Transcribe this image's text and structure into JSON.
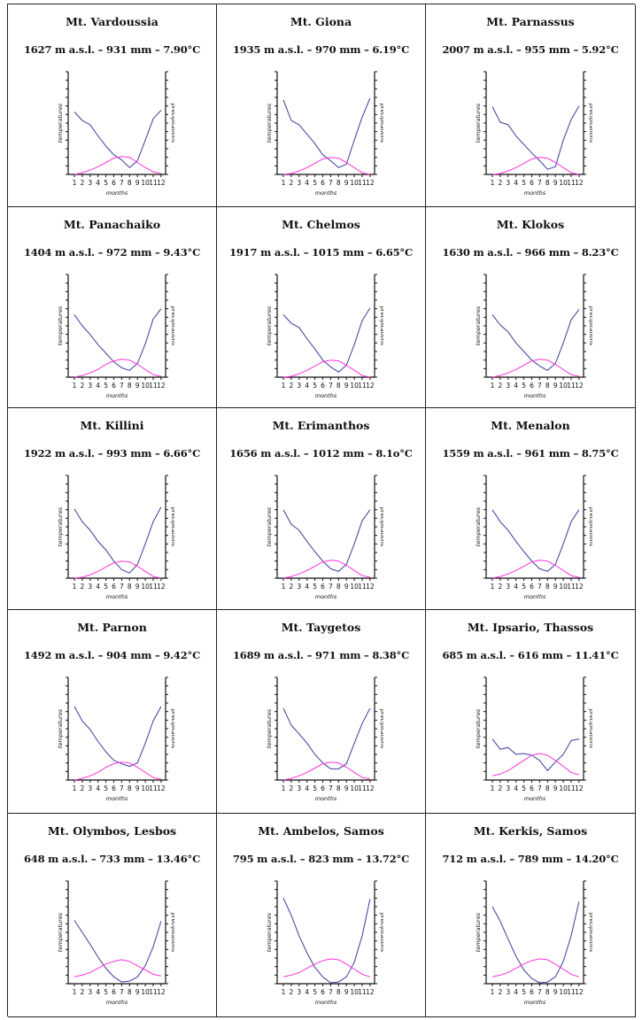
{
  "colors": {
    "temperature_line": "#3b3b9e",
    "precipitation_line": "#ff33dd",
    "axis": "#111111",
    "border": "#222222"
  },
  "chart_data": [
    {
      "type": "line",
      "title": "Mt. Vardoussia",
      "subtitle": "1627 m a.s.l. – 931 mm – 7.90°C",
      "xlabel": "months",
      "ylabel_left": "temperatures",
      "ylabel_right": "precipitations",
      "categories": [
        "1",
        "2",
        "3",
        "4",
        "5",
        "6",
        "7",
        "8",
        "9",
        "10",
        "11",
        "12"
      ],
      "ylim": [
        0,
        12
      ],
      "series": [
        {
          "name": "precipitations",
          "values": [
            7.3,
            6.3,
            5.8,
            4.5,
            3.3,
            2.3,
            1.7,
            0.8,
            1.6,
            4.0,
            6.5,
            7.5
          ]
        },
        {
          "name": "temperatures",
          "values": [
            0.0,
            0.2,
            0.5,
            0.9,
            1.4,
            1.9,
            2.1,
            2.0,
            1.4,
            0.8,
            0.3,
            0.1
          ]
        }
      ]
    },
    {
      "type": "line",
      "title": "Mt. Giona",
      "subtitle": "1935 m a.s.l. – 970 mm – 6.19°C",
      "xlabel": "months",
      "ylabel_left": "temperatures",
      "ylabel_right": "precipitations",
      "categories": [
        "1",
        "2",
        "3",
        "4",
        "5",
        "6",
        "7",
        "8",
        "9",
        "10",
        "11",
        "12"
      ],
      "ylim": [
        0,
        12
      ],
      "series": [
        {
          "name": "precipitations",
          "values": [
            8.7,
            6.3,
            5.8,
            4.7,
            3.6,
            2.3,
            1.6,
            0.8,
            1.2,
            4.0,
            6.7,
            8.9
          ]
        },
        {
          "name": "temperatures",
          "values": [
            0.0,
            0.1,
            0.4,
            0.8,
            1.3,
            1.8,
            2.0,
            1.9,
            1.4,
            0.8,
            0.2,
            0.0
          ]
        }
      ]
    },
    {
      "type": "line",
      "title": "Mt. Parnassus",
      "subtitle": "2007 m a.s.l. – 955 mm – 5.92°C",
      "xlabel": "months",
      "ylabel_left": "temperatures",
      "ylabel_right": "precipitations",
      "categories": [
        "1",
        "2",
        "3",
        "4",
        "5",
        "6",
        "7",
        "8",
        "9",
        "10",
        "11",
        "12"
      ],
      "ylim": [
        0,
        12
      ],
      "series": [
        {
          "name": "precipitations",
          "values": [
            7.9,
            6.1,
            5.8,
            4.5,
            3.5,
            2.5,
            1.6,
            0.6,
            0.9,
            4.0,
            6.4,
            8.0
          ]
        },
        {
          "name": "temperatures",
          "values": [
            0.0,
            0.1,
            0.4,
            0.8,
            1.3,
            1.8,
            2.0,
            1.9,
            1.4,
            0.8,
            0.2,
            0.0
          ]
        }
      ]
    },
    {
      "type": "line",
      "title": "Mt. Panachaiko",
      "subtitle": "1404 m a.s.l. – 972 mm – 9.43°C",
      "xlabel": "months",
      "ylabel_left": "temperatures",
      "ylabel_right": "precipitations",
      "categories": [
        "1",
        "2",
        "3",
        "4",
        "5",
        "6",
        "7",
        "8",
        "9",
        "10",
        "11",
        "12"
      ],
      "ylim": [
        0,
        12
      ],
      "series": [
        {
          "name": "precipitations",
          "values": [
            7.3,
            6.0,
            5.0,
            3.8,
            2.8,
            1.8,
            1.1,
            0.8,
            1.6,
            3.9,
            6.8,
            8.0
          ]
        },
        {
          "name": "temperatures",
          "values": [
            0.0,
            0.2,
            0.5,
            0.9,
            1.5,
            1.9,
            2.1,
            2.0,
            1.5,
            0.9,
            0.3,
            0.1
          ]
        }
      ]
    },
    {
      "type": "line",
      "title": "Mt. Chelmos",
      "subtitle": "1917 m a.s.l. – 1015 mm – 6.65°C",
      "xlabel": "months",
      "ylabel_left": "temperatures",
      "ylabel_right": "precipitations",
      "categories": [
        "1",
        "2",
        "3",
        "4",
        "5",
        "6",
        "7",
        "8",
        "9",
        "10",
        "11",
        "12"
      ],
      "ylim": [
        0,
        12
      ],
      "series": [
        {
          "name": "precipitations",
          "values": [
            7.3,
            6.3,
            5.8,
            4.5,
            3.3,
            2.0,
            1.2,
            0.6,
            1.4,
            3.8,
            6.6,
            8.1
          ]
        },
        {
          "name": "temperatures",
          "values": [
            0.0,
            0.1,
            0.4,
            0.8,
            1.3,
            1.8,
            2.0,
            1.9,
            1.4,
            0.8,
            0.2,
            0.0
          ]
        }
      ]
    },
    {
      "type": "line",
      "title": "Mt. Klokos",
      "subtitle": "1630 m a.s.l. – 966 mm – 8.23°C",
      "xlabel": "months",
      "ylabel_left": "temperatures",
      "ylabel_right": "precipitations",
      "categories": [
        "1",
        "2",
        "3",
        "4",
        "5",
        "6",
        "7",
        "8",
        "9",
        "10",
        "11",
        "12"
      ],
      "ylim": [
        0,
        12
      ],
      "series": [
        {
          "name": "precipitations",
          "values": [
            7.3,
            6.1,
            5.3,
            4.0,
            3.0,
            2.0,
            1.3,
            0.8,
            1.6,
            4.0,
            6.7,
            7.9
          ]
        },
        {
          "name": "temperatures",
          "values": [
            0.0,
            0.2,
            0.5,
            0.9,
            1.4,
            1.9,
            2.1,
            2.0,
            1.5,
            0.9,
            0.3,
            0.1
          ]
        }
      ]
    },
    {
      "type": "line",
      "title": "Mt. Killini",
      "subtitle": "1922 m a.s.l. – 993 mm – 6.66°C",
      "xlabel": "months",
      "ylabel_left": "temperatures",
      "ylabel_right": "precipitations",
      "categories": [
        "1",
        "2",
        "3",
        "4",
        "5",
        "6",
        "7",
        "8",
        "9",
        "10",
        "11",
        "12"
      ],
      "ylim": [
        0,
        12
      ],
      "series": [
        {
          "name": "precipitations",
          "values": [
            8.1,
            6.6,
            5.6,
            4.3,
            3.3,
            2.0,
            1.0,
            0.6,
            1.6,
            4.0,
            6.6,
            8.3
          ]
        },
        {
          "name": "temperatures",
          "values": [
            0.0,
            0.1,
            0.4,
            0.8,
            1.3,
            1.8,
            2.0,
            1.9,
            1.4,
            0.8,
            0.2,
            0.0
          ]
        }
      ]
    },
    {
      "type": "line",
      "title": "Mt. Erimanthos",
      "subtitle": "1656 m a.s.l. – 1012 mm – 8.1o°C",
      "xlabel": "months",
      "ylabel_left": "temperatures",
      "ylabel_right": "precipitations",
      "categories": [
        "1",
        "2",
        "3",
        "4",
        "5",
        "6",
        "7",
        "8",
        "9",
        "10",
        "11",
        "12"
      ],
      "ylim": [
        0,
        12
      ],
      "series": [
        {
          "name": "precipitations",
          "values": [
            8.0,
            6.3,
            5.6,
            4.3,
            3.1,
            2.0,
            1.1,
            0.8,
            1.6,
            4.0,
            6.7,
            8.0
          ]
        },
        {
          "name": "temperatures",
          "values": [
            0.0,
            0.2,
            0.5,
            0.9,
            1.4,
            1.9,
            2.1,
            2.0,
            1.5,
            0.9,
            0.3,
            0.1
          ]
        }
      ]
    },
    {
      "type": "line",
      "title": "Mt. Menalon",
      "subtitle": "1559 m a.s.l. – 961 mm – 8.75°C",
      "xlabel": "months",
      "ylabel_left": "temperatures",
      "ylabel_right": "precipitations",
      "categories": [
        "1",
        "2",
        "3",
        "4",
        "5",
        "6",
        "7",
        "8",
        "9",
        "10",
        "11",
        "12"
      ],
      "ylim": [
        0,
        12
      ],
      "series": [
        {
          "name": "precipitations",
          "values": [
            8.0,
            6.6,
            5.6,
            4.3,
            3.1,
            2.0,
            1.1,
            0.8,
            1.6,
            4.0,
            6.6,
            8.0
          ]
        },
        {
          "name": "temperatures",
          "values": [
            0.0,
            0.2,
            0.5,
            0.9,
            1.4,
            1.9,
            2.1,
            2.0,
            1.5,
            0.9,
            0.3,
            0.1
          ]
        }
      ]
    },
    {
      "type": "line",
      "title": "Mt. Parnon",
      "subtitle": "1492 m a.s.l. – 904 mm – 9.42°C",
      "xlabel": "months",
      "ylabel_left": "temperatures",
      "ylabel_right": "precipitations",
      "categories": [
        "1",
        "2",
        "3",
        "4",
        "5",
        "6",
        "7",
        "8",
        "9",
        "10",
        "11",
        "12"
      ],
      "ylim": [
        0,
        12
      ],
      "series": [
        {
          "name": "precipitations",
          "values": [
            8.6,
            6.9,
            5.9,
            4.5,
            3.3,
            2.3,
            1.9,
            1.6,
            2.0,
            4.3,
            6.9,
            8.6
          ]
        },
        {
          "name": "temperatures",
          "values": [
            0.0,
            0.2,
            0.5,
            0.9,
            1.5,
            1.9,
            2.1,
            2.0,
            1.5,
            0.9,
            0.3,
            0.1
          ]
        }
      ]
    },
    {
      "type": "line",
      "title": "Mt. Taygetos",
      "subtitle": "1689 m a.s.l. – 971 mm – 8.38°C",
      "xlabel": "months",
      "ylabel_left": "temperatures",
      "ylabel_right": "precipitations",
      "categories": [
        "1",
        "2",
        "3",
        "4",
        "5",
        "6",
        "7",
        "8",
        "9",
        "10",
        "11",
        "12"
      ],
      "ylim": [
        0,
        12
      ],
      "series": [
        {
          "name": "precipitations",
          "values": [
            8.4,
            6.4,
            5.4,
            4.3,
            3.0,
            2.0,
            1.3,
            1.3,
            1.9,
            4.3,
            6.6,
            8.4
          ]
        },
        {
          "name": "temperatures",
          "values": [
            0.0,
            0.2,
            0.5,
            0.9,
            1.4,
            1.9,
            2.1,
            2.0,
            1.5,
            0.9,
            0.3,
            0.1
          ]
        }
      ]
    },
    {
      "type": "line",
      "title": "Mt. Ipsario, Thassos",
      "subtitle": "685 m a.s.l. – 616 mm – 11.41°C",
      "xlabel": "months",
      "ylabel_left": "temperatures",
      "ylabel_right": "precipitations",
      "categories": [
        "1",
        "2",
        "3",
        "4",
        "5",
        "6",
        "7",
        "8",
        "9",
        "10",
        "11",
        "12"
      ],
      "ylim": [
        0,
        12
      ],
      "series": [
        {
          "name": "precipitations",
          "values": [
            4.8,
            3.6,
            3.8,
            3.0,
            3.1,
            2.9,
            2.3,
            1.1,
            2.1,
            3.0,
            4.6,
            4.8
          ]
        },
        {
          "name": "temperatures",
          "values": [
            0.5,
            0.7,
            1.1,
            1.7,
            2.3,
            2.9,
            3.1,
            2.9,
            2.3,
            1.6,
            0.9,
            0.6
          ]
        }
      ]
    },
    {
      "type": "line",
      "title": "Mt. Olymbos, Lesbos",
      "subtitle": "648 m a.s.l. – 733 mm – 13.46°C",
      "xlabel": "months",
      "ylabel_left": "temperatures",
      "ylabel_right": "precipitations",
      "categories": [
        "1",
        "2",
        "3",
        "4",
        "5",
        "6",
        "7",
        "8",
        "9",
        "10",
        "11",
        "12"
      ],
      "ylim": [
        0,
        12
      ],
      "series": [
        {
          "name": "precipitations",
          "values": [
            7.4,
            6.0,
            4.6,
            3.1,
            1.8,
            0.8,
            0.2,
            0.3,
            0.8,
            2.1,
            4.3,
            7.3
          ]
        },
        {
          "name": "temperatures",
          "values": [
            0.8,
            1.0,
            1.3,
            1.8,
            2.3,
            2.6,
            2.8,
            2.6,
            2.1,
            1.6,
            1.1,
            0.9
          ]
        }
      ]
    },
    {
      "type": "line",
      "title": "Mt. Ambelos, Samos",
      "subtitle": "795 m a.s.l. – 823 mm – 13.72°C",
      "xlabel": "months",
      "ylabel_left": "temperatures",
      "ylabel_right": "precipitations",
      "categories": [
        "1",
        "2",
        "3",
        "4",
        "5",
        "6",
        "7",
        "8",
        "9",
        "10",
        "11",
        "12"
      ],
      "ylim": [
        0,
        12
      ],
      "series": [
        {
          "name": "precipitations",
          "values": [
            10.0,
            8.0,
            5.6,
            3.6,
            1.9,
            0.8,
            0.1,
            0.2,
            0.8,
            2.5,
            5.6,
            9.9
          ]
        },
        {
          "name": "temperatures",
          "values": [
            0.8,
            1.0,
            1.3,
            1.8,
            2.3,
            2.7,
            2.9,
            2.8,
            2.3,
            1.7,
            1.1,
            0.8
          ]
        }
      ]
    },
    {
      "type": "line",
      "title": "Mt. Kerkis, Samos",
      "subtitle": "712 m a.s.l. – 789 mm – 14.20°C",
      "xlabel": "months",
      "ylabel_left": "temperatures",
      "ylabel_right": "precipitations",
      "categories": [
        "1",
        "2",
        "3",
        "4",
        "5",
        "6",
        "7",
        "8",
        "9",
        "10",
        "11",
        "12"
      ],
      "ylim": [
        0,
        12
      ],
      "series": [
        {
          "name": "precipitations",
          "values": [
            9.0,
            7.3,
            5.2,
            3.2,
            1.6,
            0.6,
            0.1,
            0.2,
            0.8,
            2.6,
            5.6,
            9.6
          ]
        },
        {
          "name": "temperatures",
          "values": [
            0.8,
            1.0,
            1.3,
            1.8,
            2.3,
            2.7,
            2.9,
            2.8,
            2.3,
            1.7,
            1.1,
            0.8
          ]
        }
      ]
    }
  ]
}
